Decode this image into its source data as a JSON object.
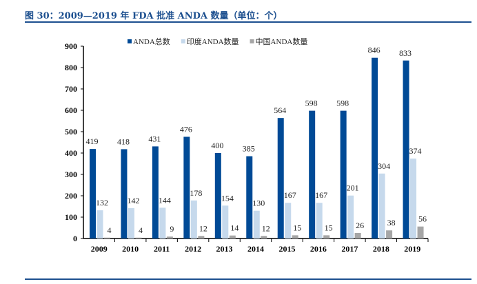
{
  "title": "图 30：2009—2019 年 FDA 批准 ANDA 数量（单位：个）",
  "chart_data": {
    "type": "bar",
    "categories": [
      "2009",
      "2010",
      "2011",
      "2012",
      "2013",
      "2014",
      "2015",
      "2016",
      "2017",
      "2018",
      "2019"
    ],
    "series": [
      {
        "name": "ANDA总数",
        "color": "#004a96",
        "values": [
          419,
          418,
          431,
          476,
          400,
          385,
          564,
          598,
          598,
          846,
          833
        ]
      },
      {
        "name": "印度ANDA数量",
        "color": "#c6d9ec",
        "values": [
          132,
          142,
          144,
          178,
          154,
          130,
          167,
          167,
          201,
          304,
          374
        ]
      },
      {
        "name": "中国ANDA数量",
        "color": "#a6a6a6",
        "values": [
          4,
          4,
          9,
          12,
          14,
          12,
          15,
          15,
          26,
          38,
          56
        ]
      }
    ],
    "ylim": [
      0,
      900
    ],
    "yticks": [
      "0",
      "100",
      "200",
      "300",
      "400",
      "500",
      "600",
      "700",
      "800",
      "900"
    ],
    "legend": "top-center",
    "grid": false
  }
}
